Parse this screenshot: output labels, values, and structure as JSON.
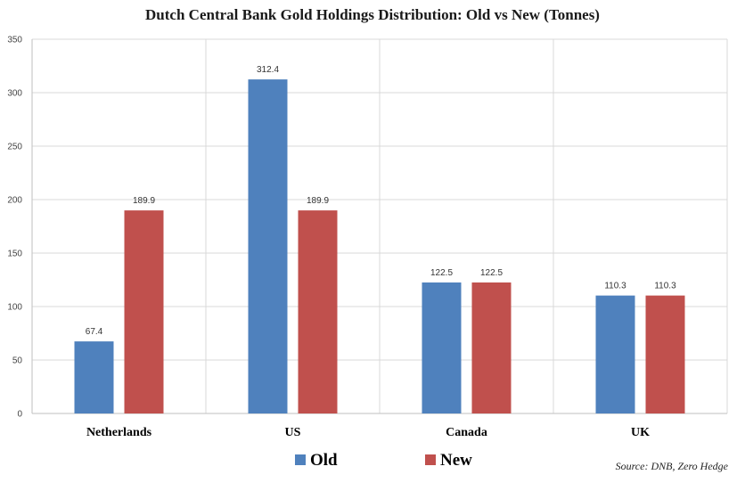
{
  "chart_data": {
    "type": "bar",
    "title": "Dutch Central Bank Gold Holdings Distribution: Old vs New (Tonnes)",
    "categories": [
      "Netherlands",
      "US",
      "Canada",
      "UK"
    ],
    "series": [
      {
        "name": "Old",
        "color": "#4f81bd",
        "values": [
          67.4,
          312.4,
          122.5,
          110.3
        ]
      },
      {
        "name": "New",
        "color": "#c0504d",
        "values": [
          189.9,
          189.9,
          122.5,
          110.3
        ]
      }
    ],
    "data_labels": [
      [
        "67.4",
        "312.4",
        "122.5",
        "110.3"
      ],
      [
        "189.9",
        "189.9",
        "122.5",
        "110.3"
      ]
    ],
    "xlabel": "",
    "ylabel": "",
    "ylim": [
      0,
      350
    ],
    "yticks": [
      0,
      50,
      100,
      150,
      200,
      250,
      300,
      350
    ],
    "grid": {
      "horizontal": true,
      "vertical_category_separators": true
    },
    "legend_position": "bottom-center",
    "source": "Source: DNB, Zero Hedge"
  }
}
